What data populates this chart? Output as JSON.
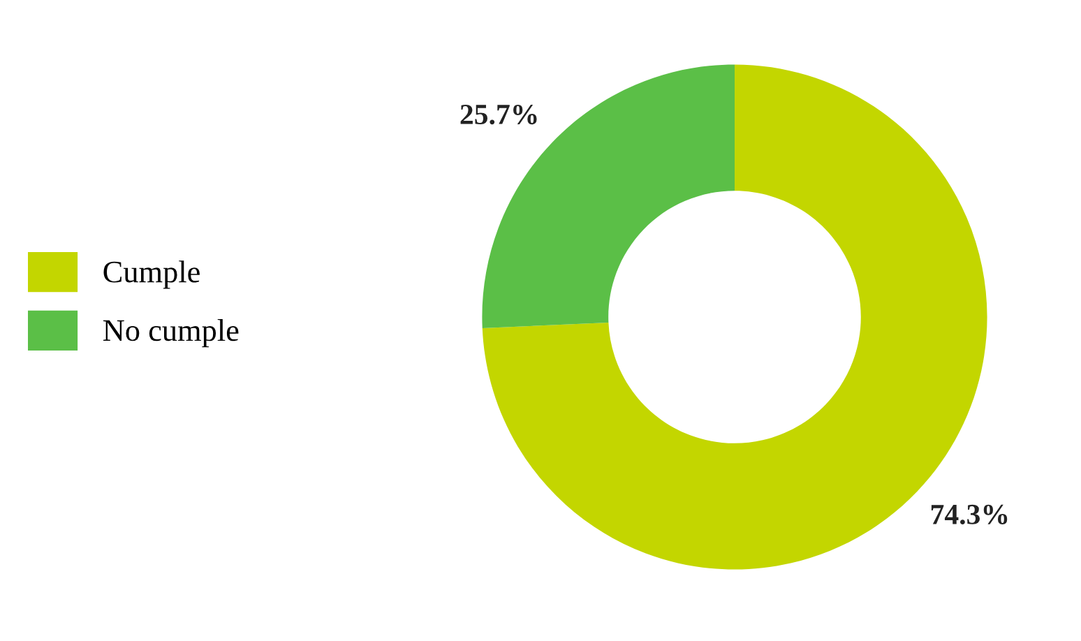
{
  "chart_data": {
    "type": "donut",
    "categories": [
      "Cumple",
      "No cumple"
    ],
    "values": [
      74.3,
      25.7
    ],
    "colors": [
      "#c3d600",
      "#5bbf47"
    ],
    "value_labels": [
      "74.3%",
      "25.7%"
    ],
    "legend": "left"
  }
}
